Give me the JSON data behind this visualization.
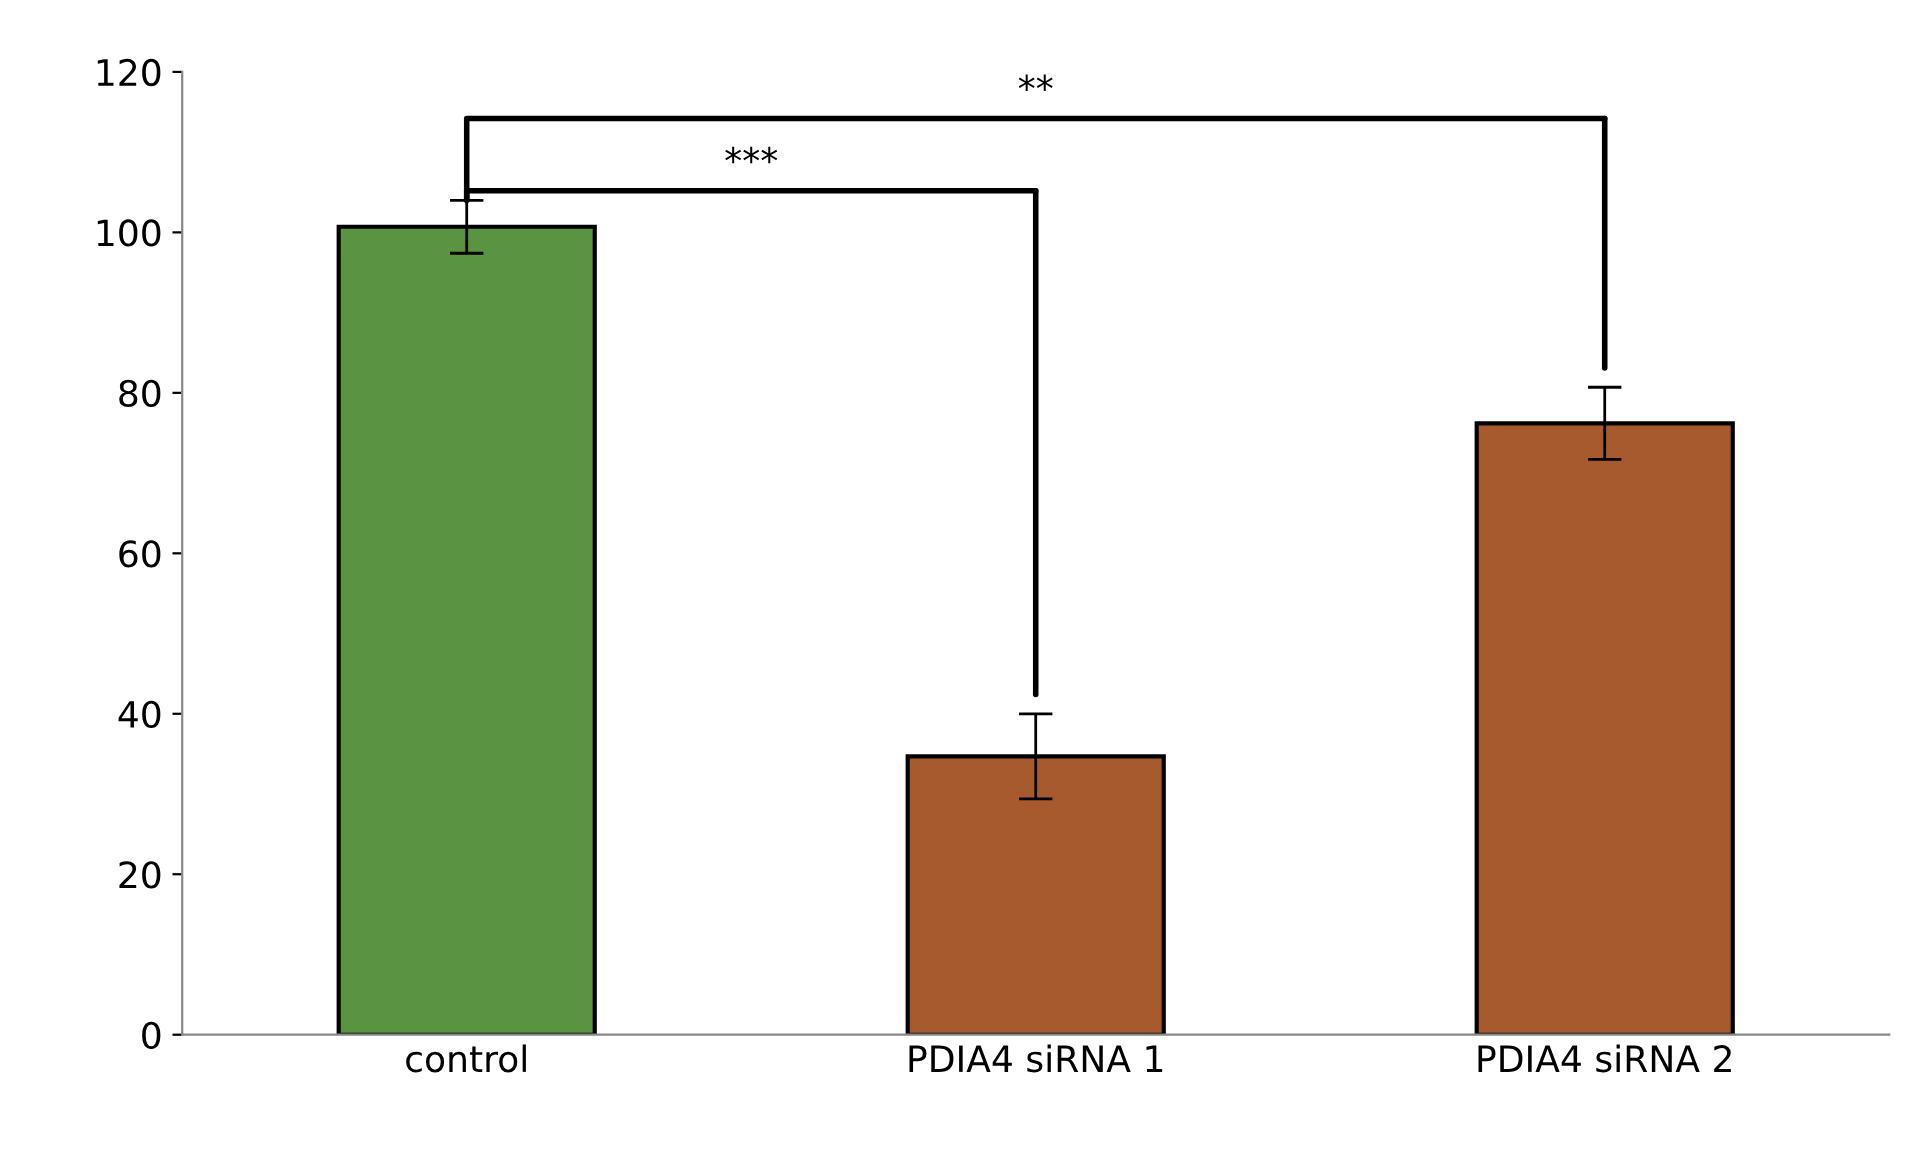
{
  "chart_data": {
    "type": "bar",
    "categories": [
      "control",
      "PDIA4 siRNA 1",
      "PDIA4 siRNA 2"
    ],
    "values": [
      100.7,
      34.7,
      76.2
    ],
    "errors": [
      3.3,
      5.3,
      4.5
    ],
    "colors": [
      "#5a9440",
      "#a65a2e",
      "#a65a2e"
    ],
    "ylim": [
      0,
      120
    ],
    "yticks": [
      0,
      20,
      40,
      60,
      80,
      100,
      120
    ],
    "grid": false,
    "annotations": [
      "***",
      "**"
    ]
  }
}
